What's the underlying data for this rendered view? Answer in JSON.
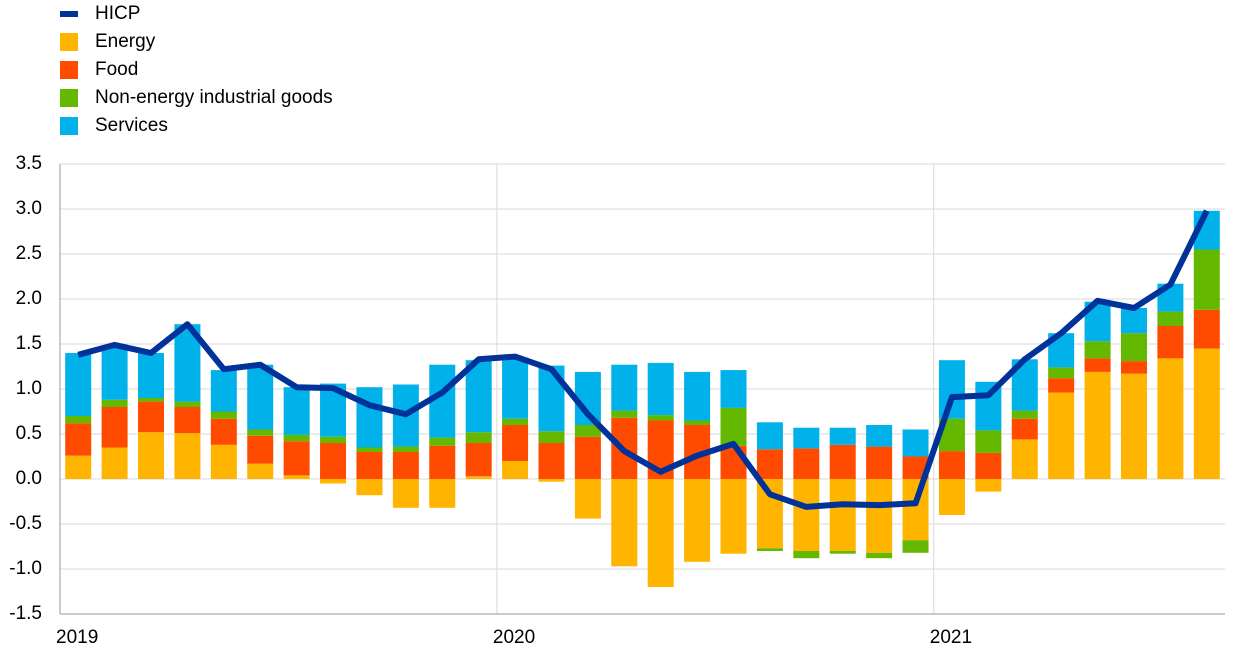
{
  "chart_data": {
    "type": "bar",
    "stacked": true,
    "grid": true,
    "legend": "top-left",
    "categories": [
      "2019",
      null,
      null,
      null,
      null,
      null,
      null,
      null,
      null,
      null,
      null,
      null,
      "2020",
      null,
      null,
      null,
      null,
      null,
      null,
      null,
      null,
      null,
      null,
      null,
      "2021",
      null,
      null,
      null,
      null,
      null,
      null,
      null
    ],
    "series": [
      {
        "name": "HICP",
        "type": "line",
        "color": "#003299",
        "values": [
          1.38,
          1.49,
          1.4,
          1.72,
          1.22,
          1.27,
          1.02,
          1.01,
          0.82,
          0.72,
          0.96,
          1.33,
          1.36,
          1.22,
          0.72,
          0.31,
          0.08,
          0.26,
          0.39,
          -0.17,
          -0.31,
          -0.28,
          -0.29,
          -0.27,
          0.91,
          0.93,
          1.33,
          1.62,
          1.98,
          1.9,
          2.16,
          2.98
        ]
      },
      {
        "name": "Energy",
        "type": "bar",
        "color": "#ffb400",
        "values": [
          0.26,
          0.35,
          0.52,
          0.51,
          0.38,
          0.17,
          0.04,
          -0.05,
          -0.18,
          -0.32,
          -0.32,
          0.03,
          0.2,
          -0.03,
          -0.44,
          -0.97,
          -1.2,
          -0.92,
          -0.83,
          -0.77,
          -0.8,
          -0.8,
          -0.82,
          -0.68,
          -0.4,
          -0.14,
          0.44,
          0.96,
          1.19,
          1.17,
          1.34,
          1.45
        ]
      },
      {
        "name": "Food",
        "type": "bar",
        "color": "#ff4b00",
        "values": [
          0.36,
          0.45,
          0.34,
          0.29,
          0.29,
          0.31,
          0.38,
          0.4,
          0.3,
          0.3,
          0.37,
          0.37,
          0.4,
          0.4,
          0.47,
          0.68,
          0.65,
          0.6,
          0.37,
          0.33,
          0.34,
          0.38,
          0.36,
          0.25,
          0.31,
          0.29,
          0.23,
          0.16,
          0.15,
          0.14,
          0.36,
          0.43
        ]
      },
      {
        "name": "Non-energy industrial goods",
        "type": "bar",
        "color": "#65b800",
        "values": [
          0.08,
          0.08,
          0.04,
          0.06,
          0.08,
          0.07,
          0.07,
          0.07,
          0.05,
          0.06,
          0.09,
          0.12,
          0.07,
          0.13,
          0.13,
          0.08,
          0.06,
          0.05,
          0.42,
          -0.03,
          -0.08,
          -0.03,
          -0.06,
          -0.14,
          0.36,
          0.25,
          0.09,
          0.12,
          0.19,
          0.31,
          0.16,
          0.67
        ]
      },
      {
        "name": "Services",
        "type": "bar",
        "color": "#00b1ea",
        "values": [
          0.7,
          0.59,
          0.5,
          0.86,
          0.46,
          0.72,
          0.53,
          0.59,
          0.67,
          0.69,
          0.81,
          0.8,
          0.68,
          0.73,
          0.59,
          0.51,
          0.58,
          0.54,
          0.42,
          0.3,
          0.23,
          0.19,
          0.24,
          0.3,
          0.65,
          0.54,
          0.57,
          0.38,
          0.44,
          0.28,
          0.31,
          0.43
        ]
      }
    ],
    "ylim": [
      -1.5,
      3.5
    ],
    "yticks": [
      -1.5,
      {
        "value": -1,
        "label": "-1.0"
      },
      -0.5,
      {
        "value": 0,
        "label": "0.0"
      },
      0.5,
      {
        "value": 1,
        "label": "1.0"
      },
      1.5,
      {
        "value": 2,
        "label": "2.0"
      },
      2.5,
      {
        "value": 3,
        "label": "3.0"
      },
      3.5
    ]
  }
}
